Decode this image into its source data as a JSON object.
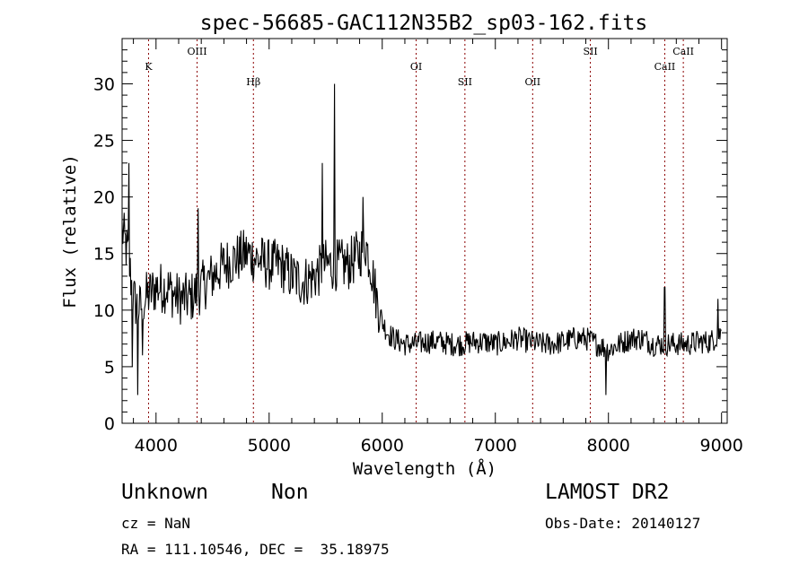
{
  "chart_data": {
    "type": "line",
    "title": "spec-56685-GAC112N35B2_sp03-162.fits",
    "xlabel": "Wavelength (Å)",
    "ylabel": "Flux (relative)",
    "xlim": [
      3700,
      9050
    ],
    "ylim": [
      0,
      34
    ],
    "xticks": [
      4000,
      5000,
      6000,
      7000,
      8000,
      9000
    ],
    "yticks": [
      0,
      5,
      10,
      15,
      20,
      25,
      30
    ],
    "grid": false,
    "line_color": "#000000",
    "marker_color": "#8b0000",
    "lines": [
      {
        "name": "K",
        "x": 3934,
        "level": "low"
      },
      {
        "name": "OIII",
        "x": 4363,
        "level": "high"
      },
      {
        "name": "Hβ",
        "x": 4861,
        "level": "mid"
      },
      {
        "name": "OI",
        "x": 6300,
        "level": "low"
      },
      {
        "name": "SII",
        "x": 6731,
        "level": "mid"
      },
      {
        "name": "OII",
        "x": 7330,
        "level": "mid"
      },
      {
        "name": "SII",
        "x": 7840,
        "level": "high"
      },
      {
        "name": "CaII",
        "x": 8498,
        "level": "low"
      },
      {
        "name": "CaII",
        "x": 8662,
        "level": "high"
      }
    ],
    "continuum": {
      "x": [
        3700,
        3750,
        3800,
        3850,
        3900,
        4000,
        4100,
        4200,
        4300,
        4400,
        4500,
        4600,
        4700,
        4800,
        4900,
        5000,
        5100,
        5200,
        5300,
        5400,
        5500,
        5600,
        5700,
        5800,
        5850,
        5900,
        5950,
        6000,
        6050,
        6100,
        6200,
        6300,
        6400,
        6500,
        6600,
        6700,
        6800,
        6900,
        7000,
        7100,
        7200,
        7300,
        7400,
        7500,
        7600,
        7700,
        7800,
        7900,
        8000,
        8100,
        8200,
        8300,
        8400,
        8500,
        8600,
        8700,
        8800,
        8900,
        9000
      ],
      "y": [
        17,
        15,
        11,
        10,
        11,
        12,
        12,
        11,
        11,
        12,
        13,
        14,
        14.5,
        15,
        14.5,
        14,
        14,
        13,
        12.5,
        13,
        14,
        14,
        14,
        15,
        16,
        14,
        11,
        9,
        8,
        7.5,
        7,
        7,
        7.2,
        7.2,
        7,
        7,
        7.2,
        7.2,
        7,
        7.2,
        7.5,
        7.2,
        7,
        7,
        7.2,
        7.5,
        7.5,
        7,
        6.5,
        7,
        7.5,
        7.5,
        7,
        7,
        7,
        7,
        7.2,
        7.2,
        8
      ]
    },
    "features": [
      {
        "x": 3760,
        "y": 23
      },
      {
        "x": 3790,
        "y": 5
      },
      {
        "x": 3840,
        "y": 2.5
      },
      {
        "x": 3880,
        "y": 6
      },
      {
        "x": 4370,
        "y": 19
      },
      {
        "x": 5470,
        "y": 23
      },
      {
        "x": 5577,
        "y": 30
      },
      {
        "x": 5830,
        "y": 20
      },
      {
        "x": 7980,
        "y": 2.5
      },
      {
        "x": 8497,
        "y": 12
      },
      {
        "x": 8970,
        "y": 11
      }
    ],
    "noise_amplitude": 1.8
  },
  "info": {
    "class": "Unknown",
    "subclass": "Non",
    "survey": "LAMOST DR2",
    "redshift": "cz = NaN",
    "obs_date": "Obs-Date: 20140127",
    "coords": "RA = 111.10546, DEC =  35.18975"
  }
}
